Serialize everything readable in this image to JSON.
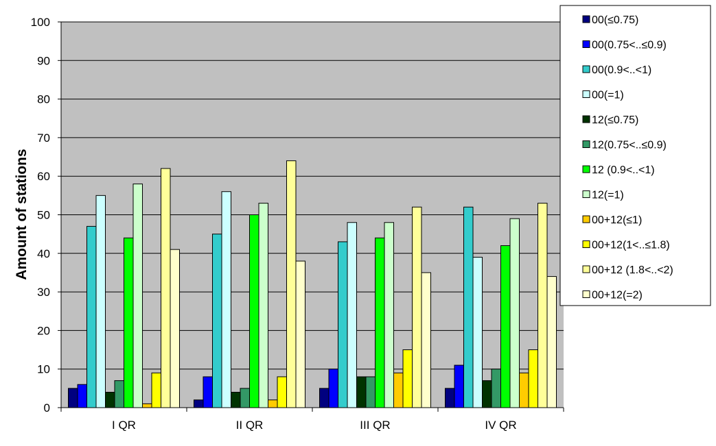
{
  "chart_data": {
    "type": "bar",
    "title": "",
    "xlabel": "",
    "ylabel": "Amount of stations",
    "ylim": [
      0,
      100
    ],
    "yticks": [
      "0",
      "10",
      "20",
      "30",
      "40",
      "50",
      "60",
      "70",
      "80",
      "90",
      "100"
    ],
    "grid": true,
    "legend_position": "right",
    "categories": [
      "I QR",
      "II QR",
      "III QR",
      "IV QR"
    ],
    "series": [
      {
        "name": "00(≤0.75)",
        "color": "#000080",
        "values": [
          5,
          2,
          5,
          5
        ]
      },
      {
        "name": "00(0.75<..≤0.9)",
        "color": "#0000FF",
        "values": [
          6,
          8,
          10,
          11
        ]
      },
      {
        "name": "00(0.9<..<1)",
        "color": "#33CCCC",
        "values": [
          47,
          45,
          43,
          52
        ]
      },
      {
        "name": "00(=1)",
        "color": "#CCFFFF",
        "values": [
          55,
          56,
          48,
          39
        ]
      },
      {
        "name": "12(≤0.75)",
        "color": "#003300",
        "values": [
          4,
          4,
          8,
          7
        ]
      },
      {
        "name": "12(0.75<..≤0.9)",
        "color": "#339966",
        "values": [
          7,
          5,
          8,
          10
        ]
      },
      {
        "name": "12 (0.9<..<1)",
        "color": "#00FF00",
        "values": [
          44,
          50,
          44,
          42
        ]
      },
      {
        "name": "12(=1)",
        "color": "#CCFFCC",
        "values": [
          58,
          53,
          48,
          49
        ]
      },
      {
        "name": "00+12(≤1)",
        "color": "#FFCC00",
        "values": [
          1,
          2,
          9,
          9
        ]
      },
      {
        "name": "00+12(1<..≤1.8)",
        "color": "#FFFF00",
        "values": [
          9,
          8,
          15,
          15
        ]
      },
      {
        "name": "00+12 (1.8<..<2)",
        "color": "#FFFF99",
        "values": [
          62,
          64,
          52,
          53
        ]
      },
      {
        "name": "00+12(=2)",
        "color": "#FFFFCC",
        "values": [
          41,
          38,
          35,
          34
        ]
      }
    ]
  }
}
